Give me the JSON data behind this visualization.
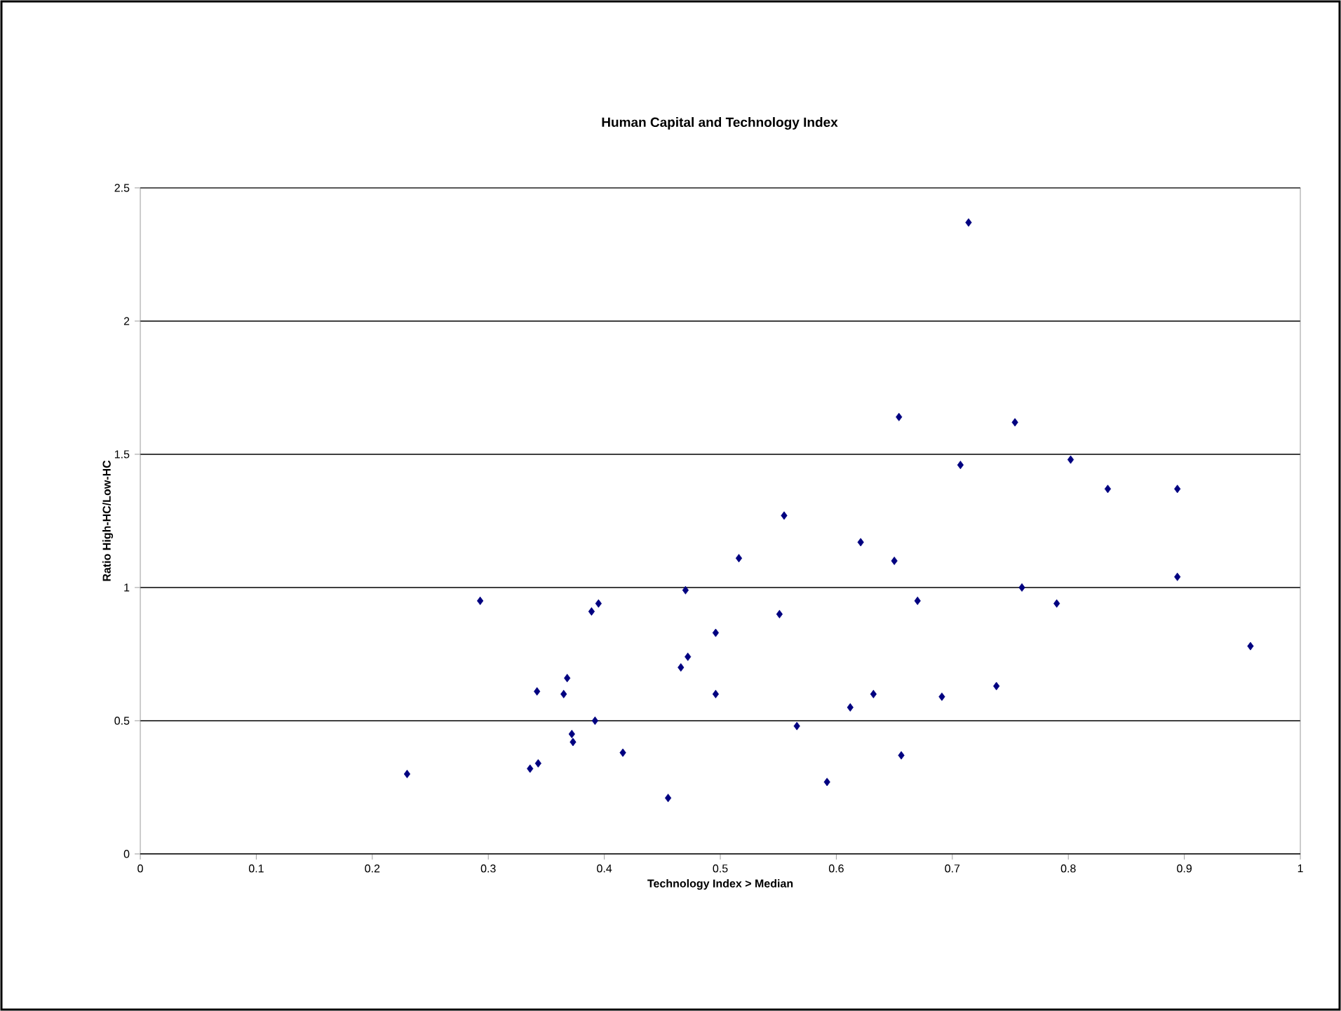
{
  "chart_data": {
    "type": "scatter",
    "title": "Human Capital and Technology Index",
    "xlabel": "Technology Index > Median",
    "ylabel": "Ratio High-HC/Low-HC",
    "x": [
      0.23,
      0.293,
      0.336,
      0.343,
      0.342,
      0.365,
      0.368,
      0.372,
      0.373,
      0.389,
      0.395,
      0.392,
      0.416,
      0.455,
      0.466,
      0.47,
      0.472,
      0.496,
      0.496,
      0.516,
      0.551,
      0.555,
      0.566,
      0.592,
      0.612,
      0.621,
      0.632,
      0.65,
      0.654,
      0.656,
      0.67,
      0.691,
      0.707,
      0.714,
      0.738,
      0.754,
      0.76,
      0.79,
      0.802,
      0.834,
      0.894,
      0.894,
      0.957
    ],
    "values": [
      0.3,
      0.95,
      0.32,
      0.34,
      0.61,
      0.6,
      0.66,
      0.45,
      0.42,
      0.91,
      0.94,
      0.5,
      0.38,
      0.21,
      0.7,
      0.99,
      0.74,
      0.83,
      0.6,
      1.11,
      0.9,
      1.27,
      0.48,
      0.27,
      0.55,
      1.17,
      0.6,
      1.1,
      1.64,
      0.37,
      0.95,
      0.59,
      1.46,
      2.37,
      0.63,
      1.62,
      1.0,
      0.94,
      1.48,
      1.37,
      1.37,
      1.04,
      0.78
    ],
    "color": "#000080",
    "marker": "diamond",
    "grid": "y",
    "xlim": [
      0,
      1
    ],
    "xticks": [
      0,
      0.1,
      0.2,
      0.3,
      0.4,
      0.5,
      0.6,
      0.7,
      0.8,
      0.9,
      1
    ],
    "ylim": [
      0,
      2.5
    ],
    "yticks": [
      0,
      0.5,
      1,
      1.5,
      2,
      2.5
    ]
  }
}
